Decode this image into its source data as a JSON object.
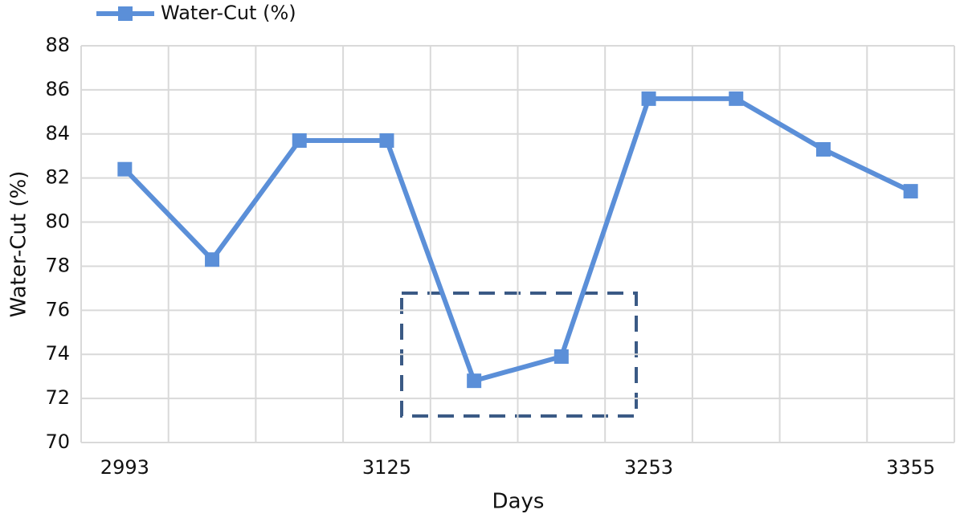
{
  "chart_data": {
    "type": "line",
    "xlabel": "Days",
    "ylabel": "Water-Cut (%)",
    "categories": [
      "2993",
      null,
      null,
      "3125",
      null,
      null,
      "3253",
      null,
      null,
      "3355"
    ],
    "series": [
      {
        "name": "Water-Cut (%)",
        "color": "#5b8fd8",
        "values": [
          82.4,
          78.3,
          83.7,
          83.7,
          72.8,
          73.9,
          85.6,
          85.6,
          83.3,
          81.4
        ]
      }
    ],
    "ylim": [
      70,
      88
    ],
    "yticks": [
      70,
      72,
      74,
      76,
      78,
      80,
      82,
      84,
      86,
      88
    ],
    "grid": true,
    "legend": "top-left"
  }
}
